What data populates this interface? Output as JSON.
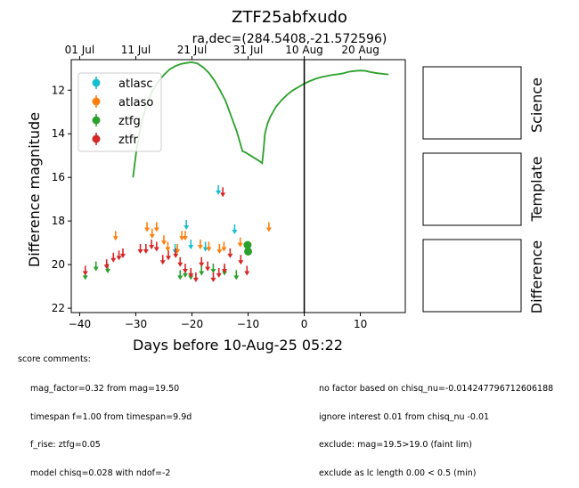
{
  "figure": {
    "title": "ZTF25abfxudo",
    "subtitle": "ra,dec=(284.5408,-21.572596)"
  },
  "chart_data": {
    "type": "scatter",
    "xlabel": "Days before 10-Aug-25 05:22",
    "ylabel": "Difference magnitude",
    "xlim": [
      -41.5,
      18
    ],
    "ylim": [
      22.2,
      10.6
    ],
    "y_inverted": true,
    "x_ticks": [
      -40,
      -30,
      -20,
      -10,
      0,
      10
    ],
    "x_tick_labels": [
      "−40",
      "−30",
      "−20",
      "−10",
      "0",
      "10"
    ],
    "y_ticks": [
      12,
      14,
      16,
      18,
      20,
      22
    ],
    "y_tick_labels": [
      "12",
      "14",
      "16",
      "18",
      "20",
      "22"
    ],
    "top_axis_ticks": [
      {
        "x": -40,
        "label": "01 Jul"
      },
      {
        "x": -30,
        "label": "11 Jul"
      },
      {
        "x": -20,
        "label": "21 Jul"
      },
      {
        "x": -10,
        "label": "31 Jul"
      },
      {
        "x": 0,
        "label": "10 Aug"
      },
      {
        "x": 10,
        "label": "20 Aug"
      }
    ],
    "vline_x": 0,
    "legend_position": "upper-left",
    "legend": [
      "atlasc",
      "atlaso",
      "ztfg",
      "ztfr"
    ],
    "series": [
      {
        "name": "atlasc",
        "color": "#17becf",
        "upper_limits": [
          [
            -15.3,
            16.6
          ],
          [
            -21.0,
            18.2
          ],
          [
            -20.2,
            19.1
          ],
          [
            -17.6,
            19.2
          ],
          [
            -12.4,
            18.4
          ],
          [
            -23.0,
            19.3
          ]
        ],
        "detections": []
      },
      {
        "name": "atlaso",
        "color": "#ff7f0e",
        "upper_limits": [
          [
            -33.6,
            18.7
          ],
          [
            -28.0,
            18.3
          ],
          [
            -26.3,
            18.3
          ],
          [
            -27.1,
            18.6
          ],
          [
            -25.0,
            18.9
          ],
          [
            -24.3,
            19.2
          ],
          [
            -22.6,
            19.3
          ],
          [
            -21.8,
            18.7
          ],
          [
            -21.2,
            18.7
          ],
          [
            -18.5,
            19.1
          ],
          [
            -17.0,
            19.2
          ],
          [
            -15.1,
            19.3
          ],
          [
            -14.3,
            19.2
          ],
          [
            -11.4,
            19.0
          ],
          [
            -6.3,
            18.3
          ]
        ],
        "detections": []
      },
      {
        "name": "ztfg",
        "color": "#2ca02c",
        "upper_limits": [
          [
            -39.0,
            20.5
          ],
          [
            -37.1,
            20.1
          ],
          [
            -35.0,
            20.2
          ],
          [
            -22.1,
            20.5
          ],
          [
            -21.2,
            20.4
          ],
          [
            -20.2,
            20.5
          ],
          [
            -18.3,
            20.3
          ],
          [
            -16.2,
            20.2
          ],
          [
            -14.2,
            20.3
          ],
          [
            -12.1,
            20.5
          ],
          [
            -10.0,
            19.3
          ]
        ],
        "detections": [
          [
            -10.1,
            19.1
          ],
          [
            -10.0,
            19.4
          ]
        ]
      },
      {
        "name": "ztfr",
        "color": "#d62728",
        "upper_limits": [
          [
            -39.0,
            20.3
          ],
          [
            -35.2,
            20.0
          ],
          [
            -34.0,
            19.7
          ],
          [
            -33.0,
            19.6
          ],
          [
            -32.3,
            19.5
          ],
          [
            -29.2,
            19.3
          ],
          [
            -28.2,
            19.3
          ],
          [
            -27.2,
            19.1
          ],
          [
            -26.3,
            19.2
          ],
          [
            -25.2,
            19.8
          ],
          [
            -24.2,
            19.6
          ],
          [
            -22.9,
            19.5
          ],
          [
            -22.1,
            19.9
          ],
          [
            -21.2,
            20.2
          ],
          [
            -20.2,
            20.4
          ],
          [
            -19.3,
            20.6
          ],
          [
            -18.3,
            19.9
          ],
          [
            -17.2,
            20.1
          ],
          [
            -16.2,
            20.6
          ],
          [
            -15.2,
            20.4
          ],
          [
            -14.2,
            20.2
          ],
          [
            -13.2,
            19.5
          ],
          [
            -11.3,
            19.8
          ],
          [
            -10.2,
            20.3
          ],
          [
            -14.5,
            16.7
          ]
        ],
        "detections": []
      }
    ],
    "model_curve": {
      "color": "#2ca02c",
      "points": [
        [
          -30.5,
          16.0
        ],
        [
          -29.8,
          14.6
        ],
        [
          -29.0,
          13.5
        ],
        [
          -28.0,
          12.6
        ],
        [
          -27.0,
          12.0
        ],
        [
          -26.0,
          11.6
        ],
        [
          -25.0,
          11.3
        ],
        [
          -24.0,
          11.05
        ],
        [
          -23.0,
          10.9
        ],
        [
          -22.0,
          10.8
        ],
        [
          -21.0,
          10.75
        ],
        [
          -20.0,
          10.72
        ],
        [
          -19.0,
          10.78
        ],
        [
          -18.0,
          10.95
        ],
        [
          -17.0,
          11.2
        ],
        [
          -16.0,
          11.55
        ],
        [
          -15.0,
          12.0
        ],
        [
          -14.0,
          12.5
        ],
        [
          -13.0,
          13.2
        ],
        [
          -12.0,
          13.9
        ],
        [
          -11.0,
          14.8
        ],
        [
          -10.5,
          14.85
        ],
        [
          -8.0,
          15.25
        ],
        [
          -7.5,
          15.35
        ],
        [
          -7.2,
          14.6
        ],
        [
          -7.0,
          14.0
        ],
        [
          -6.5,
          13.5
        ],
        [
          -6.0,
          13.2
        ],
        [
          -5.0,
          12.75
        ],
        [
          -4.0,
          12.45
        ],
        [
          -3.0,
          12.2
        ],
        [
          -2.0,
          12.0
        ],
        [
          -1.0,
          11.85
        ],
        [
          0.0,
          11.7
        ],
        [
          1.0,
          11.58
        ],
        [
          2.0,
          11.48
        ],
        [
          3.0,
          11.4
        ],
        [
          4.0,
          11.35
        ],
        [
          5.0,
          11.3
        ],
        [
          6.0,
          11.27
        ],
        [
          7.0,
          11.22
        ],
        [
          8.0,
          11.15
        ],
        [
          9.0,
          11.12
        ],
        [
          10.0,
          11.1
        ],
        [
          11.0,
          11.12
        ],
        [
          12.0,
          11.18
        ],
        [
          13.0,
          11.22
        ],
        [
          15.0,
          11.28
        ]
      ]
    }
  },
  "thumbnails": {
    "labels": [
      "Science",
      "Template",
      "Difference"
    ]
  },
  "comments": {
    "header": "score comments:",
    "left": [
      "mag_factor=0.32 from mag=19.50",
      "timespan f=1.00 from timespan=9.9d",
      "f_rise: ztfg=0.05",
      "model chisq=0.028 with ndof=-2"
    ],
    "right": [
      "no factor based on chisq_nu=-0.014247796712606188",
      "ignore interest 0.01 from chisq_nu -0.01",
      "exclude: mag=19.5>19.0 (faint lim)",
      "exclude as lc length 0.00 < 0.5 (min)"
    ]
  }
}
